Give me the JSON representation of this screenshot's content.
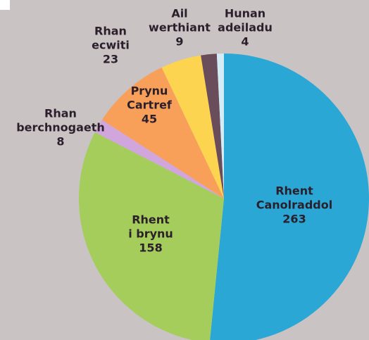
{
  "chart_data": {
    "type": "pie",
    "categories": [
      [
        "Rhent",
        "Canolraddol"
      ],
      [
        "Rhent",
        "i brynu"
      ],
      [
        "Rhan",
        "berchnogaeth"
      ],
      [
        "Prynu",
        "Cartref"
      ],
      [
        "Rhan",
        "ecwiti"
      ],
      [
        "Ail",
        "werthiant"
      ],
      [
        "Hunan",
        "adeiladu"
      ]
    ],
    "values": [
      263,
      158,
      8,
      45,
      23,
      9,
      4
    ],
    "colors": [
      "#2aa7d4",
      "#a5cd5c",
      "#d1a6dd",
      "#f8a05a",
      "#fdd44f",
      "#6a4d5a",
      "#d3ecf5"
    ]
  }
}
